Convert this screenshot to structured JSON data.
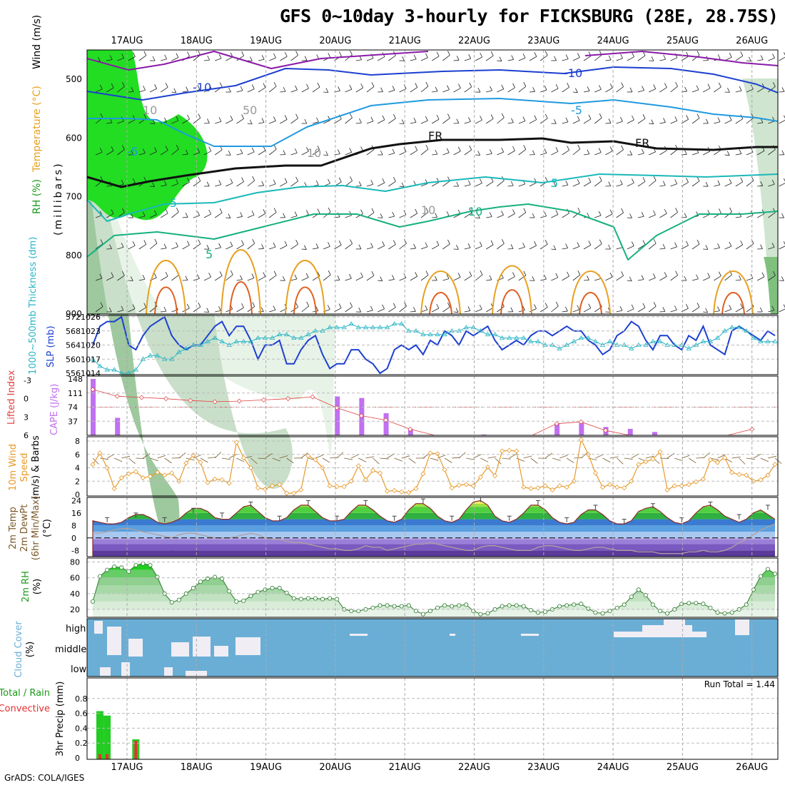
{
  "header": {
    "title": "GFS 0~10day 3-hourly for FICKSBURG (28E, 28.75S)"
  },
  "footer": {
    "credit": "GrADS: COLA/IGES",
    "run_total": "Run Total = 1.44"
  },
  "time_axis": [
    "17AUG",
    "18AUG",
    "19AUG",
    "20AUG",
    "21AUG",
    "22AUG",
    "23AUG",
    "24AUG",
    "25AUG",
    "26AUG"
  ],
  "colors": {
    "rh_green": "#22dd22",
    "rh_mid": "#8fcf8f",
    "rh_light": "#e8f3e8",
    "temp_purple": "#8a1aa8",
    "temp_blue": "#1c3fd0",
    "temp_sky": "#1f9ae0",
    "temp_teal": "#1ab8b8",
    "temp_sea": "#16b080",
    "temp_orange": "#e8a020",
    "temp_red": "#e06020",
    "slp": "#1c3fd0",
    "thick": "#2ab5c5",
    "cape": "#c070f0",
    "lifted": "#e04040",
    "wind": "#e89a2a",
    "cloud": "#6aaed6",
    "precip_total": "#22cc22",
    "precip_conv": "#e83030",
    "tmax": "#7a5a2a"
  },
  "panels": {
    "upper": {
      "ylabel": "(millibars)",
      "legend": [
        "RH (%)",
        "Temperature (°C)",
        "Wind (m/s)"
      ],
      "ticks": [
        "500",
        "600",
        "700",
        "800",
        "900"
      ],
      "contour_labels": [
        "-10",
        "-10",
        "-5",
        "-5",
        "FR",
        "FR",
        "-5",
        "5",
        "5",
        "10",
        "10",
        "10",
        "50",
        "10"
      ]
    },
    "thick": {
      "ylabel_left": "1000~500mb Thickness (dm)",
      "ylabel_right": "SLP (mb)",
      "ticks_left": [
        "572",
        "568",
        "564",
        "560",
        "556"
      ],
      "ticks_right": [
        "1026",
        "1023",
        "1020",
        "1017",
        "1014"
      ]
    },
    "cape": {
      "ylabel_left": "Lifted Index",
      "ylabel_right": "CAPE (J/kg)",
      "ticks_left": [
        "-3",
        "0",
        "3",
        "6"
      ],
      "ticks_right": [
        "148",
        "111",
        "74",
        "37"
      ]
    },
    "wind": {
      "ylabel": [
        "10m Wind",
        "Speed",
        "(m/s) & Barbs"
      ],
      "ticks": [
        "8",
        "6",
        "4",
        "2",
        "0"
      ]
    },
    "temp": {
      "ylabel": [
        "2m Temp",
        "2m DewPt",
        "(6hr Min/Max)",
        "(°C)"
      ],
      "ticks": [
        "24",
        "16",
        "8",
        "0",
        "-8"
      ]
    },
    "rh": {
      "ylabel": [
        "2m RH",
        "(%)"
      ],
      "ticks": [
        "80",
        "60",
        "40",
        "20"
      ]
    },
    "cloud": {
      "ylabel": [
        "Cloud Cover",
        "(%)"
      ],
      "levels": [
        "high",
        "middle",
        "low"
      ]
    },
    "precip": {
      "ylabel": "3hr Precip (mm)",
      "legend": [
        "Total / Rain",
        "Convective"
      ],
      "ticks": [
        "0.8",
        "0.6",
        "0.4",
        "0.2",
        "0"
      ]
    }
  },
  "chart_data": [
    {
      "type": "line",
      "title": "1000~500mb Thickness (dm) / SLP (mb)",
      "series": [
        {
          "name": "SLP (mb)",
          "values": [
            1020,
            1024,
            1025,
            1025,
            1026,
            1020,
            1019,
            1022,
            1024,
            1025,
            1026,
            1022,
            1020,
            1019,
            1020,
            1020,
            1022,
            1024,
            1025,
            1022,
            1024,
            1024,
            1021,
            1017,
            1020,
            1020,
            1021,
            1016,
            1016,
            1019,
            1021,
            1022,
            1018,
            1015,
            1016,
            1016,
            1019,
            1019,
            1017,
            1016,
            1014,
            1015,
            1019,
            1020,
            1019,
            1020,
            1018,
            1021,
            1020,
            1023,
            1022,
            1020,
            1023,
            1022,
            1023,
            1024,
            1021,
            1019,
            1020,
            1021,
            1020,
            1022,
            1023,
            1023,
            1022,
            1023,
            1024,
            1023,
            1023,
            1021,
            1020,
            1018,
            1019,
            1022,
            1023,
            1025,
            1024,
            1021,
            1019,
            1022,
            1022,
            1020,
            1019,
            1022,
            1021,
            1024,
            1020,
            1019,
            1018,
            1023,
            1024,
            1023,
            1022,
            1021,
            1023,
            1022
          ]
        },
        {
          "name": "1000~500mb Thickness (dm)",
          "values": [
            560,
            558,
            557,
            557,
            556,
            556,
            557,
            560,
            561,
            561,
            560,
            560,
            562,
            563,
            564,
            564,
            565,
            566,
            565,
            564,
            565,
            565,
            565,
            566,
            566,
            566,
            567,
            567,
            566,
            566,
            567,
            568,
            568,
            569,
            569,
            569,
            570,
            569,
            569,
            569,
            569,
            569,
            570,
            570,
            568,
            568,
            567,
            567,
            567,
            567,
            568,
            568,
            569,
            569,
            568,
            567,
            567,
            566,
            566,
            566,
            566,
            565,
            565,
            564,
            564,
            563,
            564,
            565,
            566,
            566,
            565,
            564,
            565,
            564,
            564,
            563,
            564,
            564,
            565,
            565,
            564,
            564,
            564,
            563,
            564,
            565,
            565,
            566,
            568,
            569,
            569,
            568,
            566,
            565,
            565,
            565
          ]
        }
      ],
      "ylim_left": [
        556,
        572
      ],
      "ylim_right": [
        1014,
        1026
      ]
    },
    {
      "type": "bar",
      "title": "CAPE (J/kg) / Lifted Index",
      "series": [
        {
          "name": "CAPE (J/kg)",
          "values": [
            148,
            46,
            0,
            0,
            0,
            0,
            0,
            0,
            0,
            0,
            102,
            98,
            58,
            17,
            0,
            0,
            2,
            0,
            0,
            32,
            32,
            22,
            17,
            9,
            0,
            0,
            0,
            0
          ]
        },
        {
          "name": "Lifted Index",
          "values": [
            -1.5,
            -0.4,
            -0.2,
            0,
            0.3,
            0.5,
            0.4,
            0.2,
            0,
            -0.3,
            1.5,
            2.8,
            3.5,
            5.0,
            6.2,
            7.5,
            8.0,
            7.7,
            7.0,
            4.1,
            3.8,
            5.2,
            6.5,
            7.4,
            8.0,
            8.0,
            6.0,
            5.0
          ]
        }
      ],
      "ylim_cape": [
        0,
        148
      ],
      "ylim_li": [
        -3,
        6
      ]
    },
    {
      "type": "line",
      "title": "10m Wind Speed (m/s)",
      "series": [
        {
          "name": "10m Wind Speed",
          "values": [
            4.5,
            6.2,
            4.0,
            0.9,
            2.5,
            3.1,
            3.4,
            2.5,
            2.7,
            3.3,
            2.9,
            3.2,
            2.0,
            4.7,
            5.9,
            4.8,
            1.8,
            2.3,
            2.2,
            1.7,
            7.8,
            5.5,
            4.0,
            1.0,
            0.8,
            1.3,
            1.5,
            0.2,
            0.2,
            0.7,
            5.8,
            5.2,
            4.0,
            1.3,
            1.2,
            1.2,
            2.0,
            4.3,
            2.2,
            3.6,
            3.2,
            0.5,
            0.6,
            0.4,
            0.3,
            0.9,
            3.1,
            6.2,
            6.1,
            3.7,
            1.0,
            1.4,
            1.5,
            1.3,
            2.6,
            4.1,
            2.8,
            6.5,
            6.6,
            6.5,
            1.1,
            0.9,
            1.0,
            1.3,
            0.7,
            1.3,
            1.1,
            2.0,
            8.2,
            6.0,
            3.2,
            1.1,
            1.5,
            1.1,
            1.0,
            2.0,
            4.5,
            4.9,
            5.3,
            6.4,
            0.7,
            1.3,
            1.3,
            1.5,
            1.9,
            2.3,
            5.2,
            4.8,
            5.5,
            3.3,
            3.0,
            2.9,
            2.0,
            2.2,
            2.9,
            4.5
          ]
        }
      ],
      "ylim": [
        0,
        8
      ]
    },
    {
      "type": "area",
      "title": "2m Temp / 2m DewPt (°C)",
      "series": [
        {
          "name": "2m Temp",
          "values": [
            11,
            10,
            9,
            9,
            10,
            13,
            15,
            15,
            13,
            10,
            9,
            10,
            12,
            16,
            19,
            19,
            17,
            13,
            12,
            12,
            16,
            20,
            21,
            17,
            13,
            11,
            11,
            13,
            18,
            21,
            21,
            17,
            13,
            11,
            11,
            12,
            17,
            21,
            21,
            18,
            14,
            11,
            10,
            12,
            18,
            22,
            22,
            19,
            14,
            11,
            10,
            12,
            18,
            23,
            24,
            21,
            14,
            11,
            10,
            12,
            16,
            21,
            21,
            18,
            13,
            10,
            9,
            10,
            15,
            18,
            18,
            15,
            11,
            9,
            9,
            11,
            17,
            19,
            20,
            17,
            13,
            10,
            9,
            11,
            16,
            20,
            21,
            18,
            14,
            12,
            10,
            12,
            16,
            18,
            15,
            12
          ]
        },
        {
          "name": "2m DewPt",
          "values": [
            3,
            3,
            4,
            5,
            6,
            6,
            5,
            4,
            3,
            2,
            1,
            0,
            2,
            3,
            3,
            2,
            1,
            0,
            0,
            0,
            1,
            2,
            3,
            2,
            0,
            -1,
            -1,
            -2,
            -3,
            -3,
            -4,
            -5,
            -6,
            -7,
            -7,
            -8,
            -8,
            -7,
            -5,
            -6,
            -6,
            -8,
            -7,
            -6,
            -5,
            -4,
            -4,
            -3,
            -4,
            -5,
            -6,
            -7,
            -8,
            -8,
            -6,
            -5,
            -5,
            -6,
            -7,
            -8,
            -8,
            -8,
            -6,
            -5,
            -5,
            -6,
            -7,
            -8,
            -8,
            -7,
            -6,
            -6,
            -7,
            -8,
            -8,
            -8,
            -9,
            -9,
            -9,
            -10,
            -10,
            -10,
            -10,
            -9,
            -9,
            -8,
            -9,
            -9,
            -8,
            -6,
            -3,
            -1,
            2,
            5,
            7,
            9
          ]
        }
      ],
      "ylim": [
        -12,
        26
      ]
    },
    {
      "type": "area",
      "title": "2m RH (%)",
      "series": [
        {
          "name": "2m RH",
          "values": [
            30,
            62,
            70,
            74,
            73,
            68,
            76,
            78,
            76,
            61,
            40,
            29,
            32,
            40,
            47,
            55,
            59,
            61,
            59,
            43,
            30,
            31,
            37,
            42,
            45,
            47,
            47,
            41,
            34,
            33,
            34,
            34,
            33,
            34,
            33,
            20,
            18,
            18,
            20,
            22,
            25,
            25,
            24,
            24,
            25,
            18,
            14,
            18,
            22,
            25,
            24,
            25,
            26,
            18,
            14,
            15,
            20,
            24,
            25,
            25,
            24,
            19,
            16,
            17,
            20,
            24,
            25,
            26,
            27,
            21,
            16,
            15,
            18,
            22,
            26,
            36,
            45,
            38,
            26,
            18,
            15,
            20,
            27,
            28,
            28,
            27,
            22,
            16,
            15,
            16,
            20,
            26,
            45,
            62,
            71,
            65
          ]
        }
      ],
      "ylim": [
        10,
        85
      ]
    },
    {
      "type": "bar",
      "title": "3hr Precip (mm)",
      "series": [
        {
          "name": "Total / Rain",
          "values": [
            0.63,
            0.57,
            0,
            0,
            0,
            0.25,
            0,
            0,
            0,
            0,
            0,
            0,
            0,
            0,
            0,
            0,
            0,
            0,
            0,
            0,
            0,
            0,
            0,
            0,
            0,
            0,
            0,
            0,
            0,
            0,
            0,
            0,
            0,
            0,
            0,
            0,
            0,
            0,
            0,
            0,
            0,
            0,
            0,
            0,
            0,
            0,
            0,
            0,
            0,
            0,
            0,
            0,
            0,
            0,
            0,
            0,
            0,
            0,
            0,
            0,
            0,
            0,
            0,
            0,
            0,
            0,
            0,
            0,
            0,
            0,
            0,
            0,
            0,
            0,
            0,
            0,
            0,
            0,
            0,
            0,
            0,
            0,
            0,
            0,
            0,
            0,
            0,
            0,
            0,
            0,
            0,
            0,
            0,
            0,
            0,
            0
          ]
        },
        {
          "name": "Convective",
          "values": [
            0.05,
            0.05,
            0,
            0,
            0,
            0.23,
            0,
            0,
            0,
            0,
            0,
            0,
            0,
            0,
            0,
            0,
            0,
            0,
            0,
            0,
            0,
            0,
            0,
            0,
            0,
            0,
            0,
            0,
            0,
            0,
            0,
            0,
            0,
            0,
            0,
            0,
            0,
            0,
            0,
            0,
            0,
            0,
            0,
            0,
            0,
            0,
            0,
            0,
            0,
            0,
            0,
            0,
            0,
            0,
            0,
            0,
            0,
            0,
            0,
            0,
            0,
            0,
            0,
            0,
            0,
            0,
            0,
            0,
            0,
            0,
            0,
            0,
            0,
            0,
            0,
            0,
            0,
            0,
            0,
            0,
            0,
            0,
            0,
            0,
            0,
            0,
            0,
            0,
            0,
            0,
            0,
            0,
            0,
            0,
            0,
            0
          ]
        }
      ],
      "ylim": [
        0,
        1.0
      ]
    }
  ]
}
